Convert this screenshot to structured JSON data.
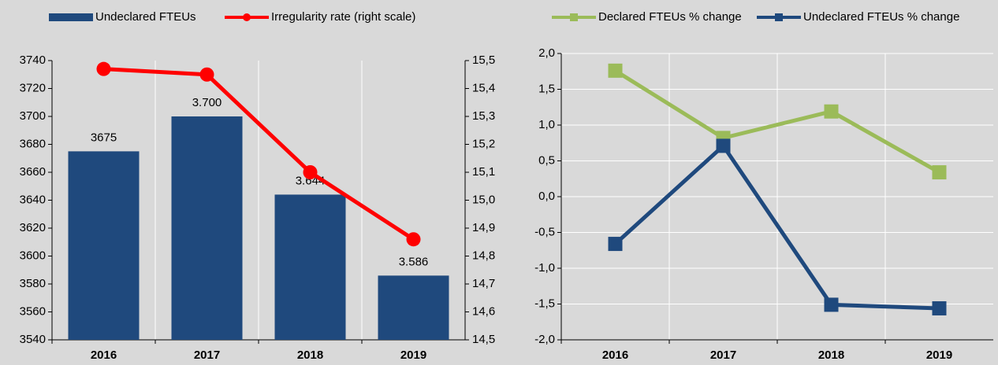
{
  "chart_data": [
    {
      "type": "bar",
      "categories": [
        "2016",
        "2017",
        "2018",
        "2019"
      ],
      "series": [
        {
          "name": "Undeclared FTEUs",
          "type": "bar",
          "color": "#1f497d",
          "values": [
            3675,
            3700,
            3644,
            3586
          ],
          "value_labels": [
            "3675",
            "3.700",
            "3.644",
            "3.586"
          ]
        },
        {
          "name": "Irregularity rate (right scale)",
          "type": "line",
          "marker": "circle",
          "color": "#ff0000",
          "axis": "y2",
          "values": [
            15.47,
            15.45,
            15.1,
            14.86
          ]
        }
      ],
      "ylim": [
        3540,
        3740
      ],
      "yticks": [
        3540,
        3560,
        3580,
        3600,
        3620,
        3640,
        3660,
        3680,
        3700,
        3720,
        3740
      ],
      "y2lim": [
        14.5,
        15.5
      ],
      "y2ticks": [
        {
          "value": 14.5,
          "label": "14,5"
        },
        {
          "value": 14.6,
          "label": "14,6"
        },
        {
          "value": 14.7,
          "label": "14,7"
        },
        {
          "value": 14.8,
          "label": "14,8"
        },
        {
          "value": 14.9,
          "label": "14,9"
        },
        {
          "value": 15.0,
          "label": "15,0"
        },
        {
          "value": 15.1,
          "label": "15,1"
        },
        {
          "value": 15.2,
          "label": "15,2"
        },
        {
          "value": 15.3,
          "label": "15,3"
        },
        {
          "value": 15.4,
          "label": "15,4"
        },
        {
          "value": 15.5,
          "label": "15,5"
        }
      ],
      "grid": "x"
    },
    {
      "type": "line",
      "categories": [
        "2016",
        "2017",
        "2018",
        "2019"
      ],
      "series": [
        {
          "name": "Declared FTEUs % change",
          "type": "line",
          "marker": "square",
          "color": "#9bbb59",
          "values": [
            1.76,
            0.82,
            1.19,
            0.34
          ]
        },
        {
          "name": "Undeclared FTEUs % change",
          "type": "line",
          "marker": "square",
          "color": "#1f497d",
          "values": [
            -0.66,
            0.71,
            -1.51,
            -1.56
          ]
        }
      ],
      "ylim": [
        -2.0,
        2.0
      ],
      "yticks": [
        {
          "value": -2.0,
          "label": "-2,0"
        },
        {
          "value": -1.5,
          "label": "-1,5"
        },
        {
          "value": -1.0,
          "label": "-1,0"
        },
        {
          "value": -0.5,
          "label": "-0,5"
        },
        {
          "value": 0.0,
          "label": "0,0"
        },
        {
          "value": 0.5,
          "label": "0,5"
        },
        {
          "value": 1.0,
          "label": "1,0"
        },
        {
          "value": 1.5,
          "label": "1,5"
        },
        {
          "value": 2.0,
          "label": "2,0"
        }
      ],
      "grid": "both"
    }
  ]
}
